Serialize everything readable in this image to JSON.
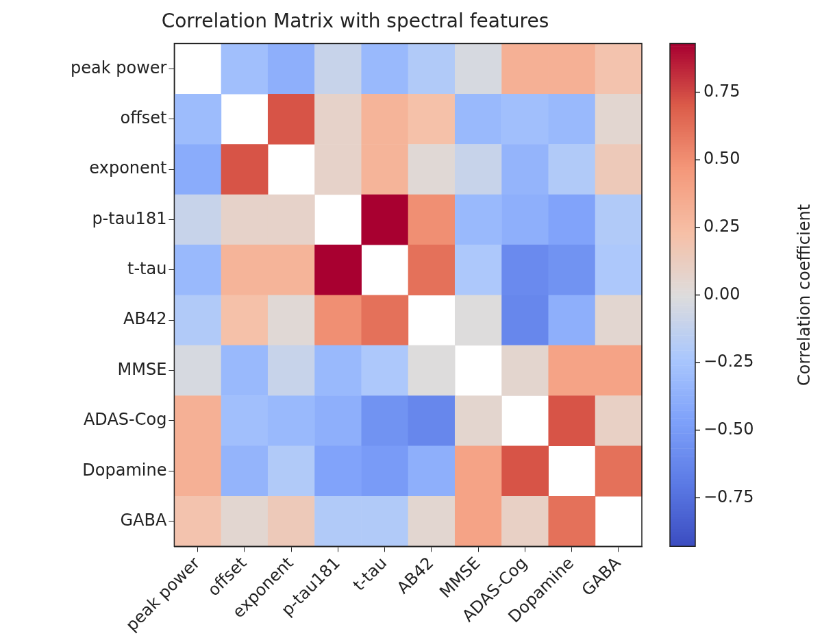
{
  "chart_data": {
    "type": "heatmap",
    "title": "Correlation Matrix with spectral features",
    "clabel": "Correlation coefficient",
    "categories": [
      "peak power",
      "offset",
      "exponent",
      "p-tau181",
      "t-tau",
      "AB42",
      "MMSE",
      "ADAS-Cog",
      "Dopamine",
      "GABA"
    ],
    "y_categories": [
      "peak power",
      "offset",
      "exponent",
      "p-tau181",
      "t-tau",
      "AB42",
      "MMSE",
      "ADAS-Cog",
      "Dopamine",
      "GABA"
    ],
    "cells": [
      [
        null,
        -0.28,
        -0.38,
        -0.1,
        -0.32,
        -0.2,
        -0.03,
        0.32,
        0.32,
        0.2
      ],
      [
        -0.3,
        null,
        0.72,
        0.08,
        0.3,
        0.22,
        -0.32,
        -0.28,
        -0.32,
        0.05
      ],
      [
        -0.4,
        0.72,
        null,
        0.08,
        0.3,
        0.03,
        -0.1,
        -0.35,
        -0.2,
        0.15
      ],
      [
        -0.1,
        0.08,
        0.08,
        null,
        0.93,
        0.5,
        -0.32,
        -0.38,
        -0.45,
        -0.2
      ],
      [
        -0.32,
        0.3,
        0.3,
        0.93,
        null,
        0.62,
        -0.22,
        -0.6,
        -0.55,
        -0.22
      ],
      [
        -0.2,
        0.22,
        0.03,
        0.5,
        0.62,
        null,
        0.0,
        -0.62,
        -0.38,
        0.05
      ],
      [
        -0.03,
        -0.32,
        -0.1,
        -0.32,
        -0.22,
        0.0,
        null,
        0.06,
        0.4,
        0.4
      ],
      [
        0.32,
        -0.28,
        -0.32,
        -0.38,
        -0.55,
        -0.62,
        0.06,
        null,
        0.72,
        0.1
      ],
      [
        0.32,
        -0.35,
        -0.2,
        -0.45,
        -0.5,
        -0.38,
        0.4,
        0.72,
        null,
        0.62
      ],
      [
        0.2,
        0.05,
        0.15,
        -0.2,
        -0.2,
        0.05,
        0.4,
        0.1,
        0.62,
        null
      ]
    ],
    "clim": [
      -0.93,
      0.93
    ],
    "cticks": [
      {
        "value": -0.75,
        "label": "−0.75"
      },
      {
        "value": -0.5,
        "label": "−0.50"
      },
      {
        "value": -0.25,
        "label": "−0.25"
      },
      {
        "value": 0,
        "label": "0.00"
      },
      {
        "value": 0.25,
        "label": "0.25"
      },
      {
        "value": 0.5,
        "label": "0.50"
      },
      {
        "value": 0.75,
        "label": "0.75"
      }
    ]
  }
}
